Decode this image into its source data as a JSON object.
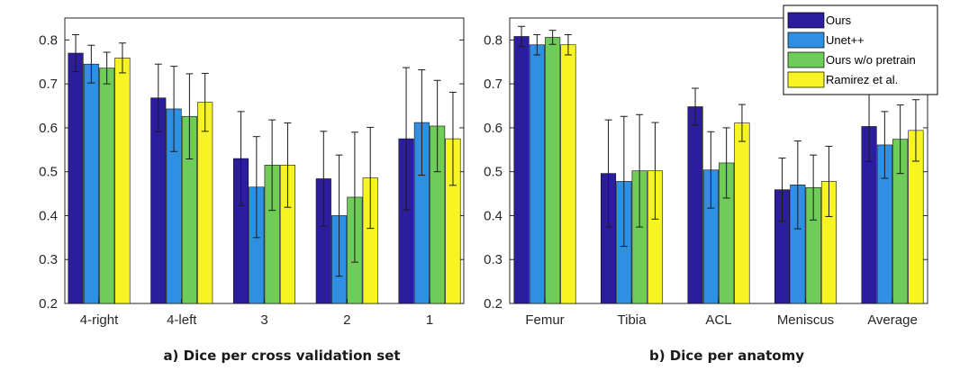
{
  "colors": {
    "ours": "#2b1d9c",
    "unetpp": "#2f8fe2",
    "ours_wo": "#6fcc58",
    "ramirez": "#f8f424"
  },
  "legend": {
    "entries": [
      "Ours",
      "Unet++",
      "Ours w/o pretrain",
      "Ramirez et al."
    ],
    "placement": "top-right"
  },
  "chart_data": [
    {
      "type": "bar",
      "title": "a) Dice per cross validation set",
      "xlabel": "",
      "ylabel": "",
      "ylim": [
        0.2,
        0.85
      ],
      "yticks": [
        0.2,
        0.3,
        0.4,
        0.5,
        0.6,
        0.7,
        0.8
      ],
      "ytick_labels": [
        "0.2",
        "0.3",
        "0.4",
        "0.5",
        "0.6",
        "0.7",
        "0.8"
      ],
      "categories": [
        "4-right",
        "4-left",
        "3",
        "2",
        "1"
      ],
      "series": [
        {
          "name": "Ours",
          "values": [
            0.77,
            0.668,
            0.53,
            0.484,
            0.575
          ],
          "errors": [
            0.042,
            0.077,
            0.107,
            0.108,
            0.162
          ]
        },
        {
          "name": "Unet++",
          "values": [
            0.745,
            0.643,
            0.465,
            0.4,
            0.612
          ],
          "errors": [
            0.043,
            0.097,
            0.115,
            0.138,
            0.12
          ]
        },
        {
          "name": "Ours w/o pretrain",
          "values": [
            0.736,
            0.626,
            0.515,
            0.442,
            0.604
          ],
          "errors": [
            0.036,
            0.097,
            0.103,
            0.148,
            0.104
          ]
        },
        {
          "name": "Ramirez et al.",
          "values": [
            0.759,
            0.658,
            0.515,
            0.486,
            0.575
          ],
          "errors": [
            0.034,
            0.066,
            0.096,
            0.115,
            0.106
          ]
        }
      ]
    },
    {
      "type": "bar",
      "title": "b) Dice per anatomy",
      "xlabel": "",
      "ylabel": "",
      "ylim": [
        0.2,
        0.85
      ],
      "yticks": [
        0.2,
        0.3,
        0.4,
        0.5,
        0.6,
        0.7,
        0.8
      ],
      "ytick_labels": [
        "0.2",
        "0.3",
        "0.4",
        "0.5",
        "0.6",
        "0.7",
        "0.8"
      ],
      "categories": [
        "Femur",
        "Tibia",
        "ACL",
        "Meniscus",
        "Average"
      ],
      "series": [
        {
          "name": "Ours",
          "values": [
            0.808,
            0.496,
            0.648,
            0.459,
            0.603
          ],
          "errors": [
            0.023,
            0.122,
            0.042,
            0.072,
            0.08
          ]
        },
        {
          "name": "Unet++",
          "values": [
            0.789,
            0.478,
            0.504,
            0.47,
            0.561
          ],
          "errors": [
            0.023,
            0.148,
            0.087,
            0.1,
            0.076
          ]
        },
        {
          "name": "Ours w/o pretrain",
          "values": [
            0.806,
            0.502,
            0.52,
            0.464,
            0.574
          ],
          "errors": [
            0.016,
            0.128,
            0.08,
            0.074,
            0.078
          ]
        },
        {
          "name": "Ramirez et al.",
          "values": [
            0.789,
            0.502,
            0.611,
            0.478,
            0.594
          ],
          "errors": [
            0.023,
            0.11,
            0.042,
            0.08,
            0.07
          ]
        }
      ]
    }
  ]
}
